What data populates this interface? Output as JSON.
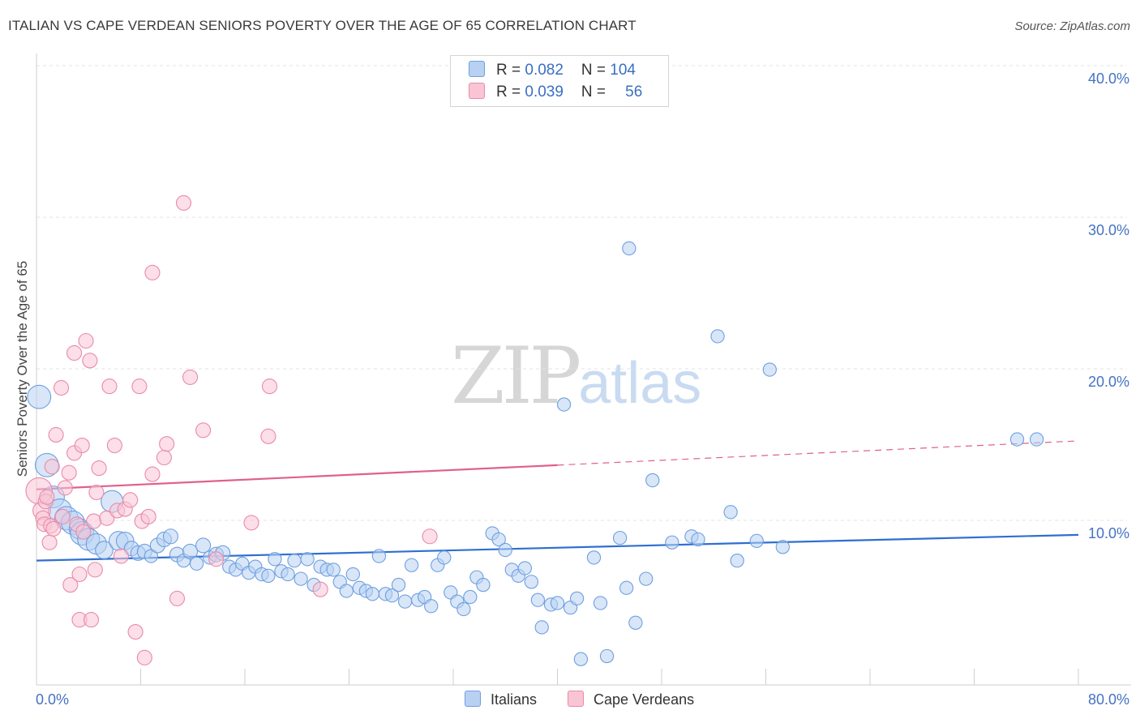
{
  "title": "ITALIAN VS CAPE VERDEAN SENIORS POVERTY OVER THE AGE OF 65 CORRELATION CHART",
  "source": "Source: ZipAtlas.com",
  "watermark": {
    "zip": "ZIP",
    "atlas": "atlas"
  },
  "legend": {
    "italians": {
      "r_label": "R = ",
      "r_value": "0.082",
      "n_label": "N = ",
      "n_value": "104",
      "color": "#b8d1f3"
    },
    "cape": {
      "r_label": "R = ",
      "r_value": "0.039",
      "n_label": "N = ",
      "n_value": "56",
      "color": "#f9c5d5"
    }
  },
  "bottom_legend": {
    "italians": "Italians",
    "cape": "Cape Verdeans"
  },
  "chart_data": {
    "type": "scatter",
    "xlabel": "",
    "ylabel": "Seniors Poverty Over the Age of 65",
    "xlim": [
      0,
      80
    ],
    "ylim": [
      0,
      40
    ],
    "x_tick_labels": [
      "0.0%",
      "80.0%"
    ],
    "y_ticks": [
      10,
      20,
      30,
      40
    ],
    "y_tick_labels": [
      "10.0%",
      "20.0%",
      "30.0%",
      "40.0%"
    ],
    "grid": true,
    "legend_placement": "top-center",
    "series": [
      {
        "name": "Italians",
        "color": "#6e9fe0",
        "fill": "#b8d1f3",
        "trend": {
          "x": [
            0,
            80
          ],
          "y": [
            8.2,
            9.9
          ],
          "color": "#2f6fd0"
        },
        "points": [
          [
            0.2,
            19.0,
            1.6
          ],
          [
            0.8,
            14.5,
            1.6
          ],
          [
            1.3,
            12.4,
            1.5
          ],
          [
            1.8,
            11.5,
            1.6
          ],
          [
            2.3,
            11.0,
            1.6
          ],
          [
            2.8,
            10.7,
            1.6
          ],
          [
            3.3,
            10.3,
            1.4
          ],
          [
            3.5,
            10.0,
            1.6
          ],
          [
            4.0,
            9.6,
            1.5
          ],
          [
            4.6,
            9.3,
            1.4
          ],
          [
            5.2,
            8.9,
            1.2
          ],
          [
            5.8,
            12.1,
            1.5
          ],
          [
            6.3,
            9.5,
            1.3
          ],
          [
            6.8,
            9.5,
            1.2
          ],
          [
            7.3,
            9.0,
            1.0
          ],
          [
            7.8,
            8.7,
            1.0
          ],
          [
            8.3,
            8.8,
            1.0
          ],
          [
            8.8,
            8.5,
            0.9
          ],
          [
            9.3,
            9.2,
            1.0
          ],
          [
            9.8,
            9.6,
            1.0
          ],
          [
            10.3,
            9.8,
            1.0
          ],
          [
            10.8,
            8.6,
            1.0
          ],
          [
            11.3,
            8.2,
            0.9
          ],
          [
            11.8,
            8.8,
            1.0
          ],
          [
            12.3,
            8.0,
            0.9
          ],
          [
            12.8,
            9.2,
            1.0
          ],
          [
            13.3,
            8.4,
            0.9
          ],
          [
            13.8,
            8.6,
            1.0
          ],
          [
            14.3,
            8.7,
            1.0
          ],
          [
            14.8,
            7.8,
            0.9
          ],
          [
            15.3,
            7.6,
            0.9
          ],
          [
            15.8,
            8.0,
            0.9
          ],
          [
            16.3,
            7.4,
            0.9
          ],
          [
            16.8,
            7.8,
            0.9
          ],
          [
            17.3,
            7.3,
            0.9
          ],
          [
            17.8,
            7.2,
            0.9
          ],
          [
            18.3,
            8.3,
            0.9
          ],
          [
            18.8,
            7.5,
            0.9
          ],
          [
            19.3,
            7.3,
            0.9
          ],
          [
            19.8,
            8.2,
            0.9
          ],
          [
            20.3,
            7.0,
            0.9
          ],
          [
            20.8,
            8.3,
            0.9
          ],
          [
            21.3,
            6.6,
            0.9
          ],
          [
            21.8,
            7.8,
            0.9
          ],
          [
            22.3,
            7.6,
            0.9
          ],
          [
            22.8,
            7.6,
            0.9
          ],
          [
            23.3,
            6.8,
            0.9
          ],
          [
            23.8,
            6.2,
            0.9
          ],
          [
            24.3,
            7.3,
            0.9
          ],
          [
            24.8,
            6.4,
            0.9
          ],
          [
            25.3,
            6.2,
            0.9
          ],
          [
            25.8,
            6.0,
            0.9
          ],
          [
            26.3,
            8.5,
            0.9
          ],
          [
            26.8,
            6.0,
            0.9
          ],
          [
            27.3,
            5.9,
            0.9
          ],
          [
            27.8,
            6.6,
            0.9
          ],
          [
            28.3,
            5.5,
            0.9
          ],
          [
            28.8,
            7.9,
            0.9
          ],
          [
            29.3,
            5.6,
            0.9
          ],
          [
            29.8,
            5.8,
            0.9
          ],
          [
            30.3,
            5.2,
            0.9
          ],
          [
            30.8,
            7.9,
            0.9
          ],
          [
            31.3,
            8.4,
            0.9
          ],
          [
            31.8,
            6.1,
            0.9
          ],
          [
            32.3,
            5.5,
            0.9
          ],
          [
            32.8,
            5.0,
            0.9
          ],
          [
            33.3,
            5.8,
            0.9
          ],
          [
            33.8,
            7.1,
            0.9
          ],
          [
            34.3,
            6.6,
            0.9
          ],
          [
            35.0,
            10.0,
            0.9
          ],
          [
            35.5,
            9.6,
            0.9
          ],
          [
            36.0,
            8.9,
            0.9
          ],
          [
            36.5,
            7.6,
            0.9
          ],
          [
            37.0,
            7.2,
            0.9
          ],
          [
            37.5,
            7.7,
            0.9
          ],
          [
            38.0,
            6.8,
            0.9
          ],
          [
            38.5,
            5.6,
            0.9
          ],
          [
            38.8,
            3.8,
            0.9
          ],
          [
            39.5,
            5.3,
            0.9
          ],
          [
            40.0,
            5.4,
            0.9
          ],
          [
            40.5,
            18.5,
            0.9
          ],
          [
            41.0,
            5.1,
            0.9
          ],
          [
            41.5,
            5.7,
            0.9
          ],
          [
            41.8,
            1.7,
            0.9
          ],
          [
            42.8,
            8.4,
            0.9
          ],
          [
            43.3,
            5.4,
            0.9
          ],
          [
            43.8,
            1.9,
            0.9
          ],
          [
            44.8,
            9.7,
            0.9
          ],
          [
            45.3,
            6.4,
            0.9
          ],
          [
            45.5,
            28.8,
            0.9
          ],
          [
            46.0,
            4.1,
            0.9
          ],
          [
            46.8,
            7.0,
            0.9
          ],
          [
            47.3,
            13.5,
            0.9
          ],
          [
            48.8,
            9.4,
            0.9
          ],
          [
            50.3,
            9.8,
            0.9
          ],
          [
            50.8,
            9.6,
            0.9
          ],
          [
            52.3,
            23.0,
            0.9
          ],
          [
            53.3,
            11.4,
            0.9
          ],
          [
            53.8,
            8.2,
            0.9
          ],
          [
            55.3,
            9.5,
            0.9
          ],
          [
            56.3,
            20.8,
            0.9
          ],
          [
            57.3,
            9.1,
            0.9
          ],
          [
            75.3,
            16.2,
            0.9
          ],
          [
            76.8,
            16.2,
            0.9
          ]
        ]
      },
      {
        "name": "Cape Verdeans",
        "color": "#e98aa8",
        "fill": "#f9c5d5",
        "trend": {
          "x": [
            0,
            40,
            80
          ],
          "y": [
            12.9,
            14.5,
            16.1
          ],
          "color": "#e0608c"
        },
        "points": [
          [
            0.2,
            12.8,
            1.8
          ],
          [
            0.4,
            11.5,
            1.2
          ],
          [
            0.5,
            11.0,
            1.0
          ],
          [
            0.6,
            10.6,
            1.0
          ],
          [
            0.7,
            12.1,
            1.0
          ],
          [
            0.8,
            12.4,
            1.0
          ],
          [
            1.0,
            9.4,
            1.0
          ],
          [
            1.1,
            10.5,
            1.0
          ],
          [
            1.2,
            14.4,
            1.0
          ],
          [
            1.3,
            10.3,
            1.0
          ],
          [
            1.5,
            16.5,
            1.0
          ],
          [
            1.9,
            19.6,
            1.0
          ],
          [
            2.0,
            11.1,
            1.0
          ],
          [
            2.2,
            13.0,
            1.0
          ],
          [
            2.5,
            14.0,
            1.0
          ],
          [
            2.6,
            6.6,
            1.0
          ],
          [
            2.9,
            15.3,
            1.0
          ],
          [
            2.9,
            21.9,
            1.0
          ],
          [
            3.1,
            10.6,
            1.0
          ],
          [
            3.3,
            7.3,
            1.0
          ],
          [
            3.3,
            4.3,
            1.0
          ],
          [
            3.5,
            15.8,
            1.0
          ],
          [
            3.6,
            10.1,
            1.0
          ],
          [
            3.8,
            22.7,
            1.0
          ],
          [
            4.1,
            21.4,
            1.0
          ],
          [
            4.2,
            4.3,
            1.0
          ],
          [
            4.4,
            10.8,
            1.0
          ],
          [
            4.5,
            7.6,
            1.0
          ],
          [
            4.8,
            14.3,
            1.0
          ],
          [
            4.6,
            12.7,
            1.0
          ],
          [
            5.4,
            11.0,
            1.0
          ],
          [
            5.6,
            19.7,
            1.0
          ],
          [
            6.0,
            15.8,
            1.0
          ],
          [
            6.2,
            11.5,
            1.0
          ],
          [
            6.5,
            8.5,
            1.0
          ],
          [
            6.8,
            11.6,
            1.0
          ],
          [
            7.2,
            12.2,
            1.0
          ],
          [
            7.6,
            3.5,
            1.0
          ],
          [
            7.9,
            19.7,
            1.0
          ],
          [
            8.1,
            10.8,
            1.0
          ],
          [
            8.3,
            1.8,
            1.0
          ],
          [
            8.6,
            11.1,
            1.0
          ],
          [
            8.9,
            13.9,
            1.0
          ],
          [
            8.9,
            27.2,
            1.0
          ],
          [
            9.8,
            15.0,
            1.0
          ],
          [
            10.0,
            15.9,
            1.0
          ],
          [
            10.8,
            5.7,
            1.0
          ],
          [
            11.3,
            31.8,
            1.0
          ],
          [
            11.8,
            20.3,
            1.0
          ],
          [
            12.8,
            16.8,
            1.0
          ],
          [
            13.8,
            8.3,
            1.0
          ],
          [
            16.5,
            10.7,
            1.0
          ],
          [
            17.8,
            16.4,
            1.0
          ],
          [
            17.9,
            19.7,
            1.0
          ],
          [
            21.8,
            6.3,
            1.0
          ],
          [
            30.2,
            9.8,
            1.0
          ]
        ]
      }
    ]
  }
}
